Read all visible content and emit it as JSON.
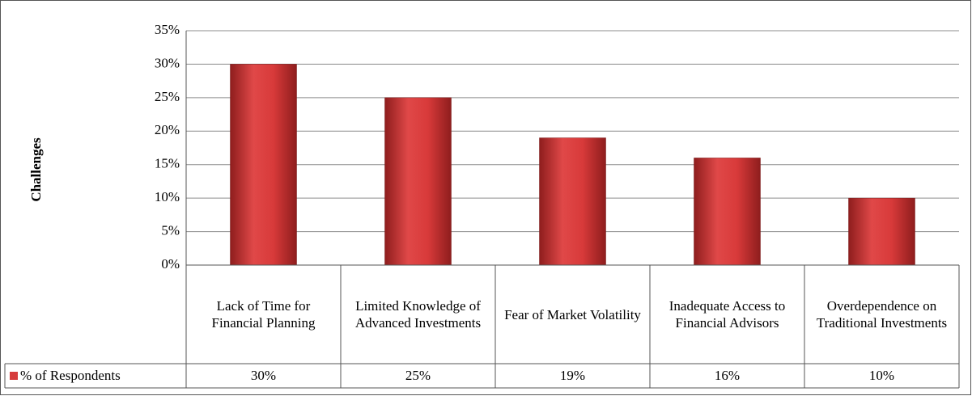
{
  "chart_data": {
    "type": "bar",
    "y_axis_label": "Challenges",
    "categories": [
      "Lack of Time for Financial Planning",
      "Limited Knowledge of Advanced Investments",
      "Fear of Market Volatility",
      "Inadequate Access to Financial Advisors",
      "Overdependence on Traditional Investments"
    ],
    "series": [
      {
        "name": "% of Respondents",
        "color": "#d63c3c",
        "values": [
          30,
          25,
          19,
          16,
          10
        ],
        "value_labels": [
          "30%",
          "25%",
          "19%",
          "16%",
          "10%"
        ]
      }
    ],
    "ylim": [
      0,
      35
    ],
    "yticks": [
      {
        "value": 0,
        "label": "0%"
      },
      {
        "value": 5,
        "label": "5%"
      },
      {
        "value": 10,
        "label": "10%"
      },
      {
        "value": 15,
        "label": "15%"
      },
      {
        "value": 20,
        "label": "20%"
      },
      {
        "value": 25,
        "label": "25%"
      },
      {
        "value": 30,
        "label": "30%"
      },
      {
        "value": 35,
        "label": "35%"
      }
    ],
    "grid": true,
    "data_table": true
  }
}
